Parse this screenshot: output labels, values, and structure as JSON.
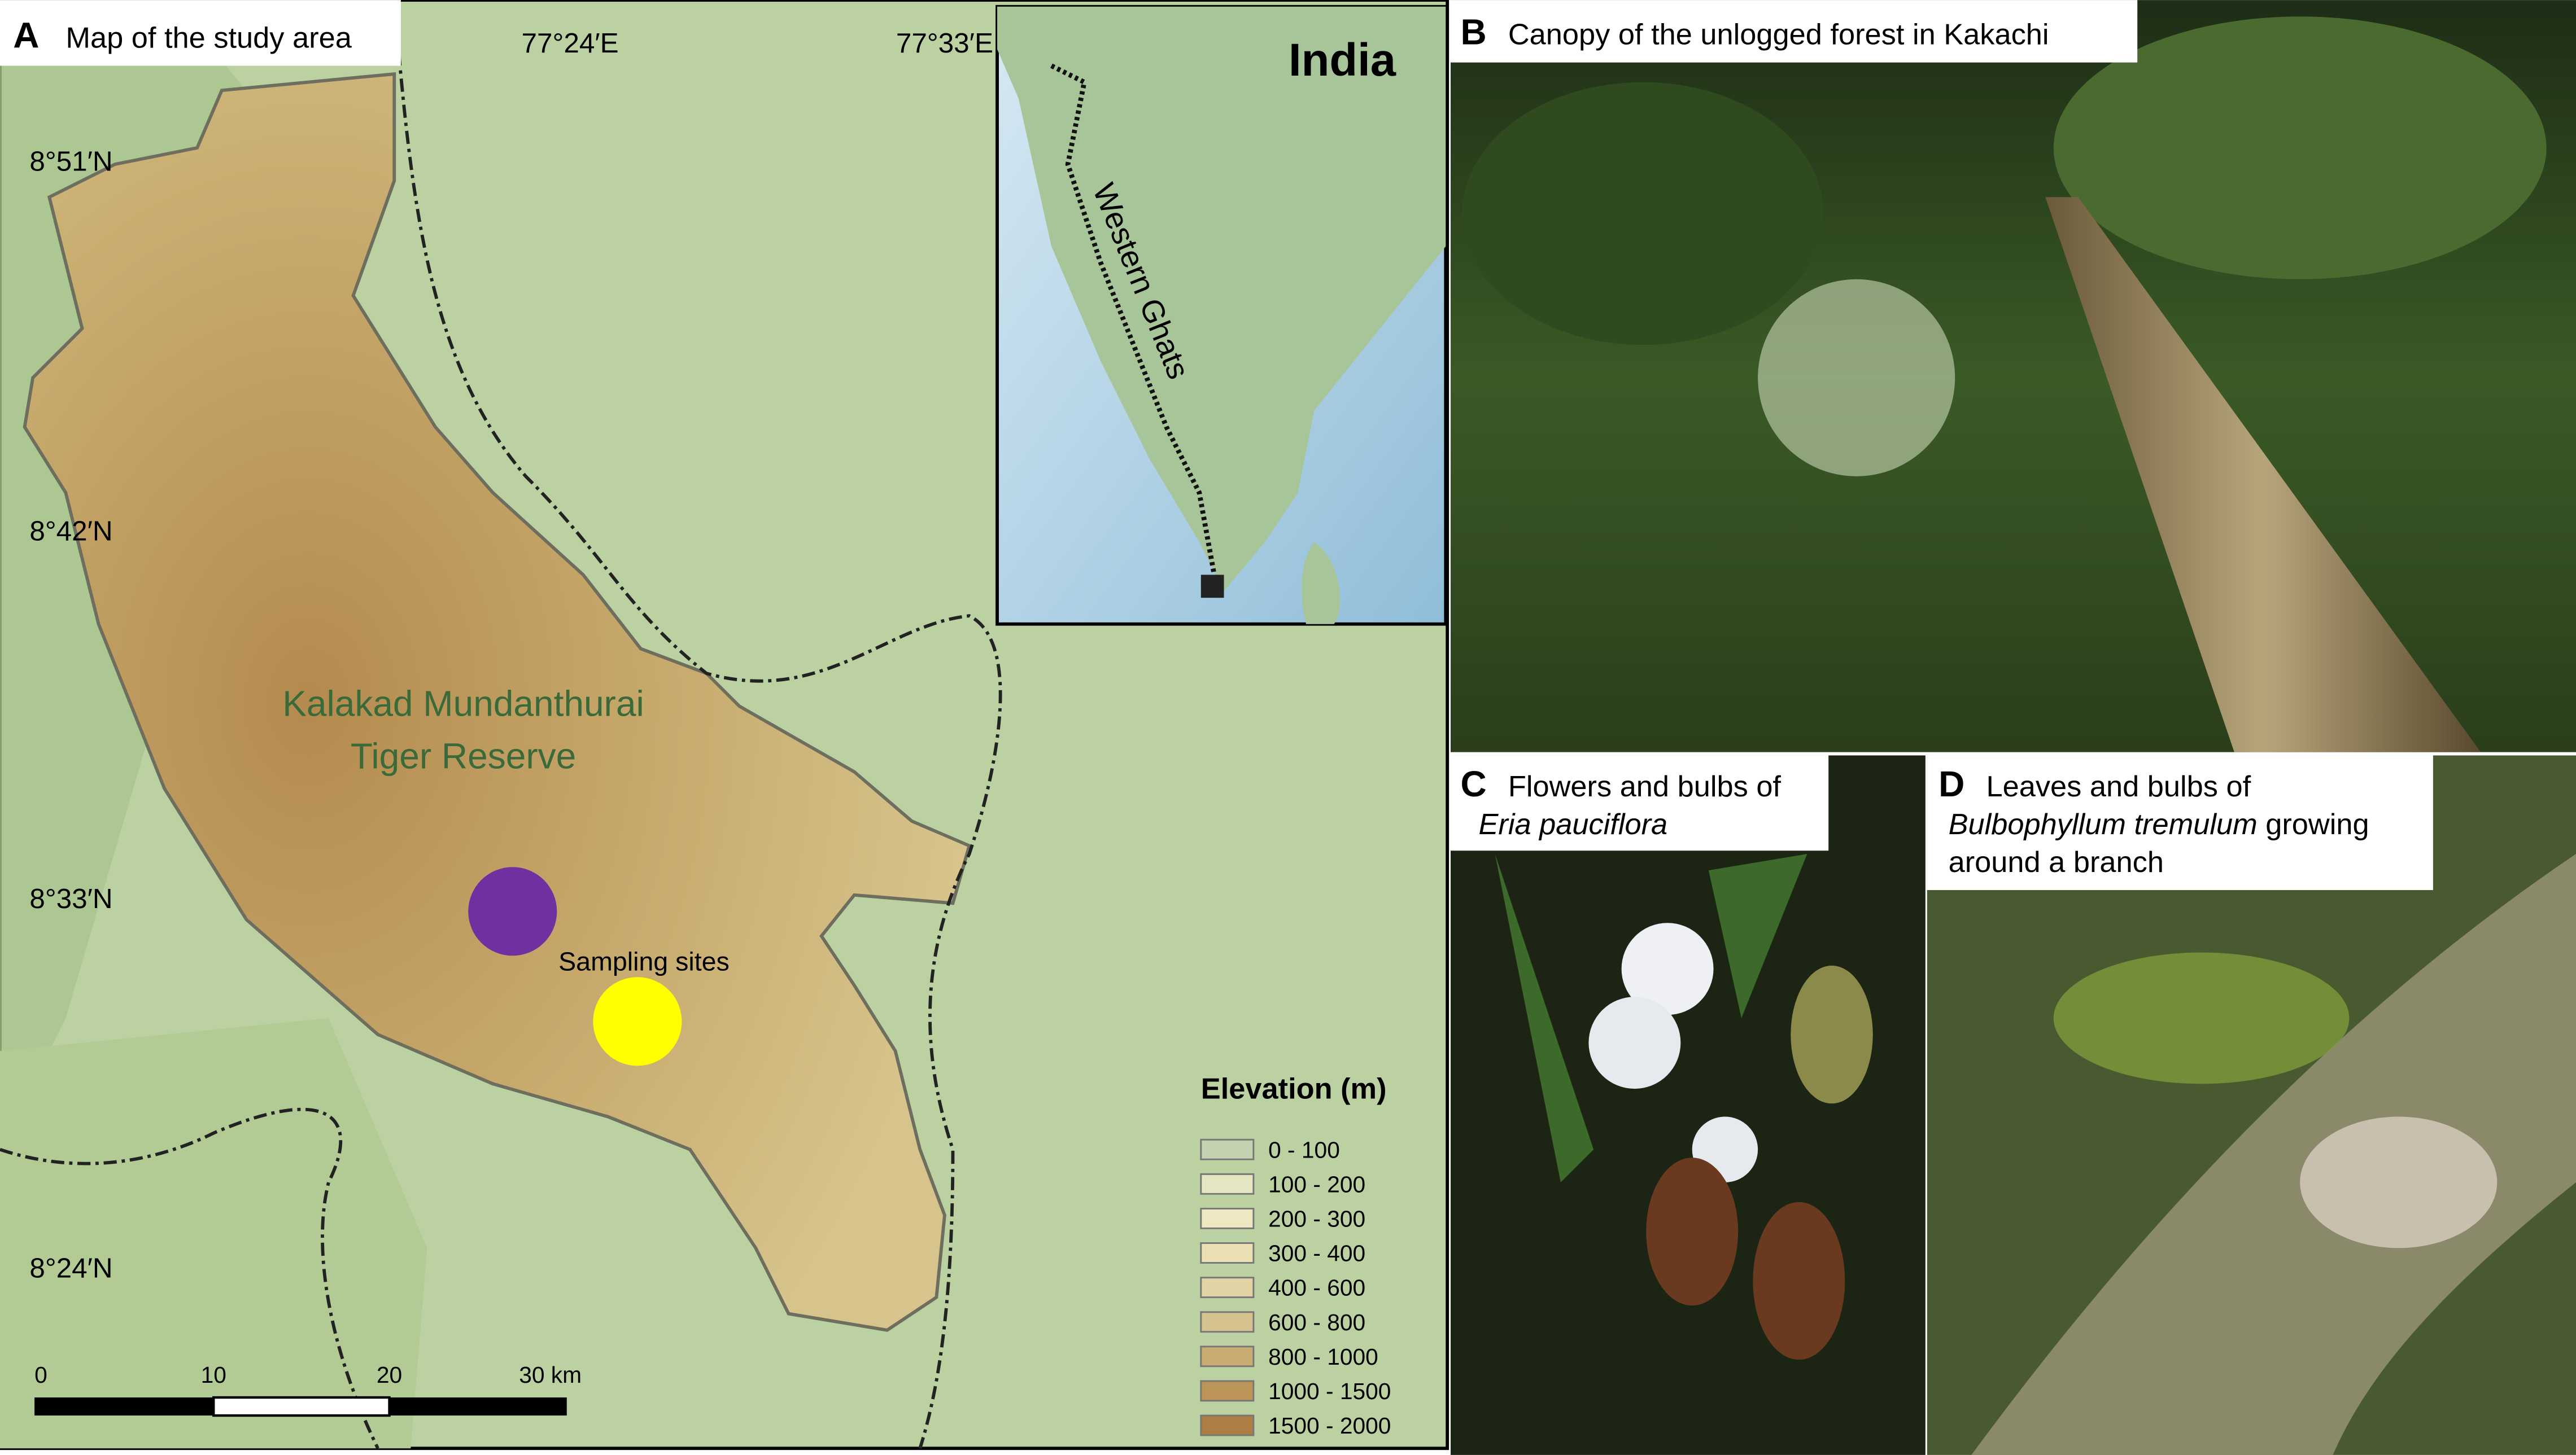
{
  "panels": [
    {
      "letter": "A",
      "title": "Map of the study area"
    },
    {
      "letter": "B",
      "title": "Canopy of the unlogged forest in Kakachi"
    },
    {
      "letter": "C",
      "title": "Flowers and bulbs of",
      "species": "Eria pauciflora"
    },
    {
      "letter": "D",
      "title": "Leaves and bulbs of",
      "species": "Bulbophyllum tremulum",
      "species_rest": "growing",
      "title_end": "around a branch"
    }
  ],
  "map": {
    "longitude_labels": [
      "77°24′E",
      "77°33′E"
    ],
    "latitude_labels": [
      "8°51′N",
      "8°42′N",
      "8°33′N",
      "8°24′N"
    ],
    "reserve_name": [
      "Kalakad Mundanthurai",
      "Tiger Reserve"
    ],
    "sampling_sites_label": "Sampling sites",
    "inset": {
      "country": "India",
      "region": "Western Ghats"
    },
    "scale_bar_labels": [
      "0",
      "10",
      "20",
      "30 km"
    ],
    "legend": {
      "title": "Elevation (m)",
      "classes": [
        "0 - 100",
        "100 - 200",
        "200 - 300",
        "300 - 400",
        "400 - 600",
        "600 - 800",
        "800 - 1000",
        "1000 - 1500",
        "1500 - 2000"
      ]
    }
  }
}
